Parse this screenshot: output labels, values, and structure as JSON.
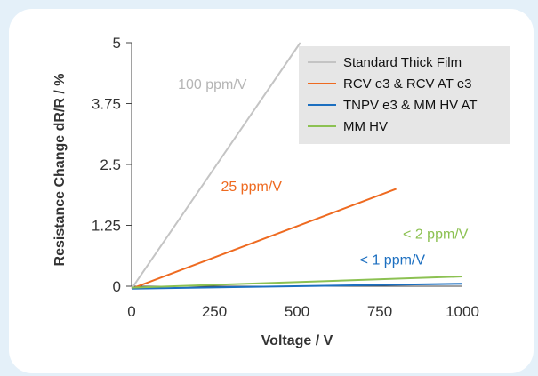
{
  "colors": {
    "page_background": "#e4f0f9",
    "card": "#ffffff",
    "legend_background": "#e6e6e6",
    "axis": "#444444"
  },
  "chart_data": {
    "type": "line",
    "xlabel": "Voltage / V",
    "ylabel": "Resistance Change dR/R /  %",
    "xlim": [
      0,
      1000
    ],
    "ylim": [
      0,
      5
    ],
    "xticks": [
      "0",
      "250",
      "500",
      "750",
      "1000"
    ],
    "yticks": [
      "0",
      "1.25",
      "2.5",
      "3.75",
      "5"
    ],
    "xtick_values": [
      0,
      250,
      500,
      750,
      1000
    ],
    "ytick_values": [
      0,
      1.25,
      2.5,
      3.75,
      5
    ],
    "grid": false,
    "legend_position": "top-right",
    "series": [
      {
        "name": "Standard Thick Film",
        "color": "#c4c4c4",
        "x": [
          0,
          510
        ],
        "y": [
          -0.05,
          5
        ]
      },
      {
        "name": "RCV e3 & RCV AT e3",
        "color": "#ee6a20",
        "x": [
          0,
          800
        ],
        "y": [
          -0.05,
          2.0
        ]
      },
      {
        "name": "TNPV e3 & MM HV AT",
        "color": "#1c6fc0",
        "x": [
          0,
          1000
        ],
        "y": [
          -0.05,
          0.05
        ]
      },
      {
        "name": "MM HV",
        "color": "#8cc152",
        "x": [
          0,
          1000
        ],
        "y": [
          -0.03,
          0.2
        ]
      }
    ],
    "annotations": [
      {
        "text": "100 ppm/V",
        "x": 140,
        "y": 4.05,
        "color": "#b5b5b5"
      },
      {
        "text": "25 ppm/V",
        "x": 270,
        "y": 1.95,
        "color": "#ee6a20"
      },
      {
        "text": "< 2 ppm/V",
        "x": 820,
        "y": 0.98,
        "color": "#8cc152"
      },
      {
        "text": "< 1 ppm/V",
        "x": 690,
        "y": 0.45,
        "color": "#1c6fc0"
      }
    ]
  }
}
